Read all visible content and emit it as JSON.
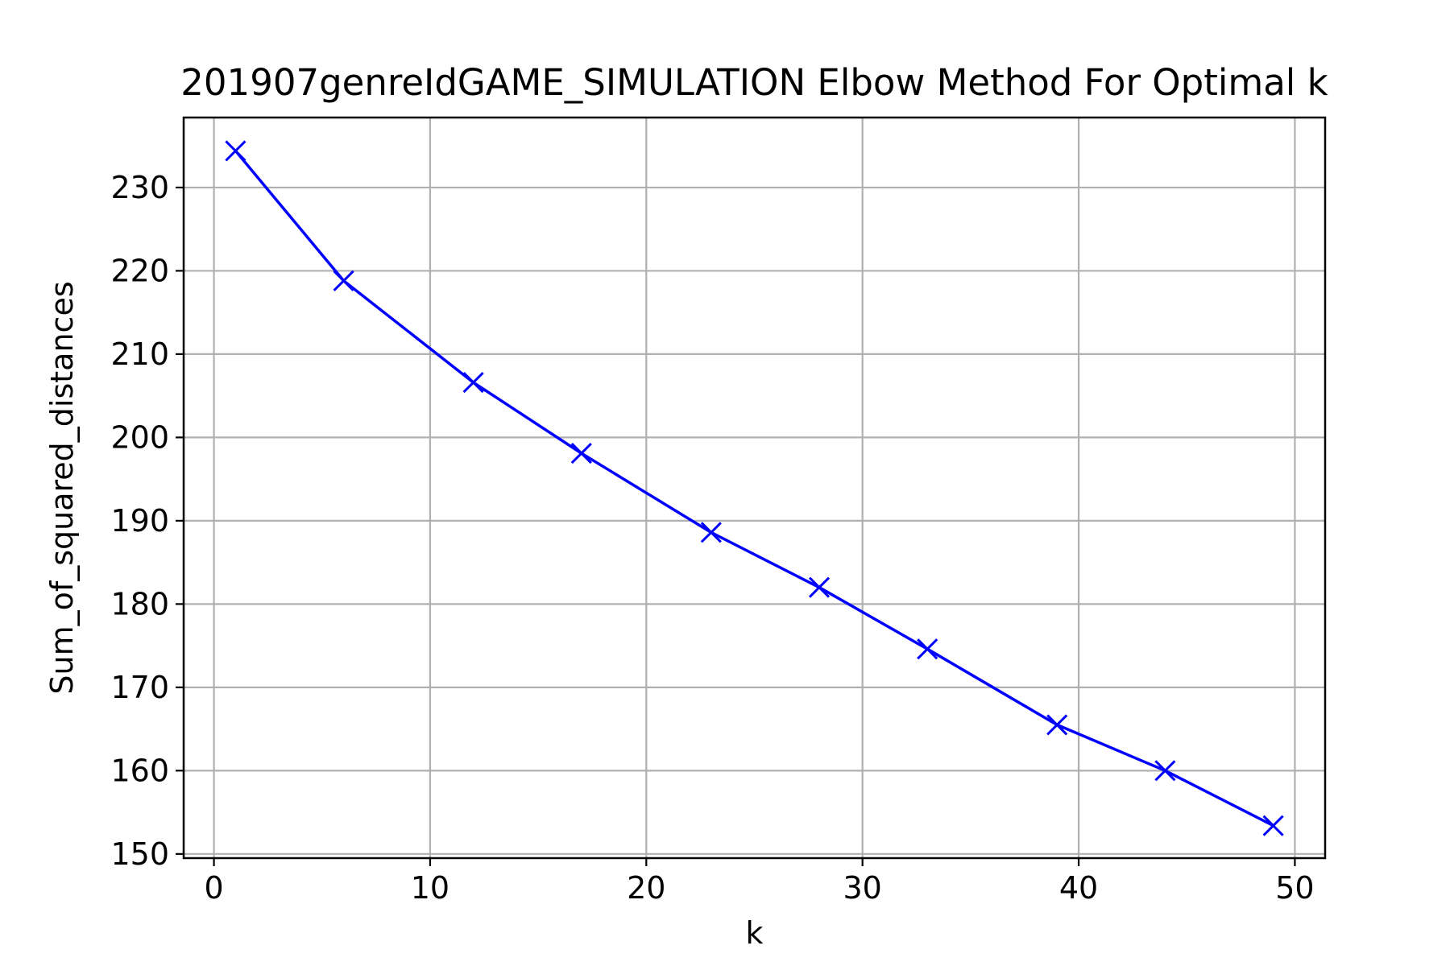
{
  "chart_data": {
    "type": "line",
    "title": "201907genreIdGAME_SIMULATION Elbow Method For Optimal k",
    "xlabel": "k",
    "ylabel": "Sum_of_squared_distances",
    "xlim": [
      -1.4,
      51.4
    ],
    "ylim": [
      149.5,
      238.4
    ],
    "xticks": [
      0,
      10,
      20,
      30,
      40,
      50
    ],
    "yticks": [
      150,
      160,
      170,
      180,
      190,
      200,
      210,
      220,
      230
    ],
    "grid": true,
    "legend": "none",
    "marker": "x",
    "series": [
      {
        "color": "#0000ff",
        "x": [
          1,
          6,
          12,
          17,
          23,
          28,
          33,
          39,
          44,
          49
        ],
        "y": [
          234.4,
          218.8,
          206.6,
          198.1,
          188.6,
          182.0,
          174.6,
          165.5,
          160.0,
          153.4
        ]
      }
    ]
  }
}
